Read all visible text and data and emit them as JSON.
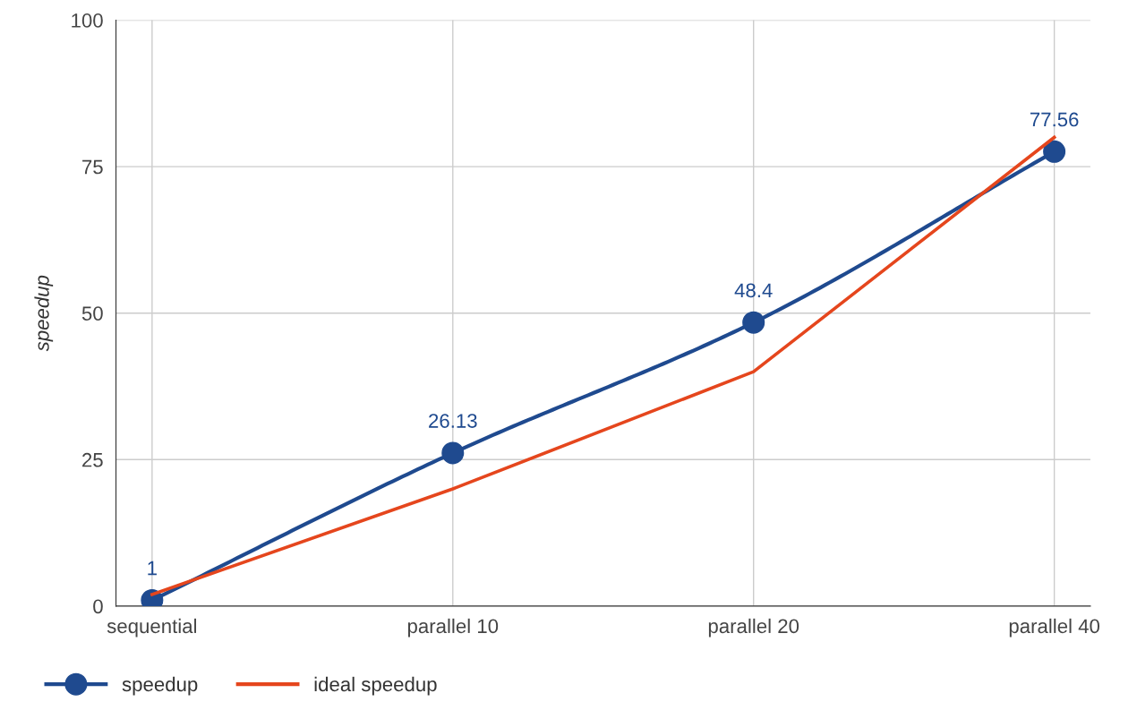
{
  "chart_data": {
    "type": "line",
    "ylabel": "speedup",
    "categories": [
      "sequential",
      "parallel 10",
      "parallel 20",
      "parallel 40"
    ],
    "series": [
      {
        "name": "speedup",
        "color": "#1f4a8f",
        "values": [
          1,
          26.13,
          48.4,
          77.56
        ],
        "marker": "circle",
        "data_labels": true
      },
      {
        "name": "ideal speedup",
        "color": "#e5461d",
        "values": [
          2,
          20,
          40,
          80
        ],
        "marker": "none"
      }
    ],
    "ylim": [
      0,
      100
    ],
    "yticks": [
      0,
      25,
      50,
      75,
      100
    ],
    "grid": true,
    "legend": "bottom left"
  }
}
